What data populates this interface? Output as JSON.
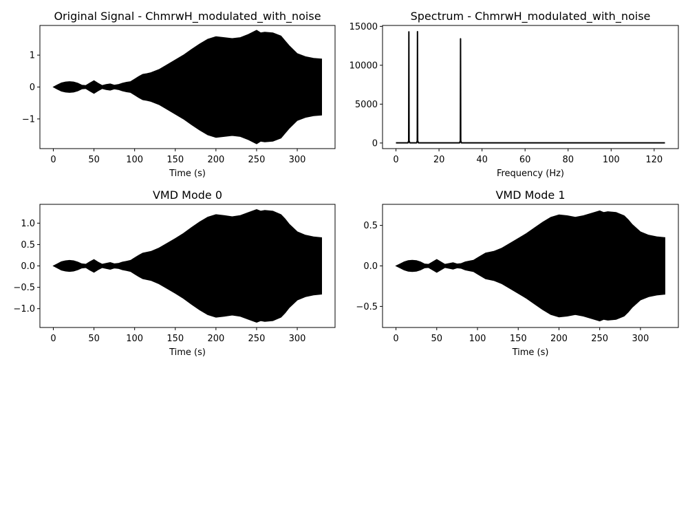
{
  "chart_data": [
    {
      "type": "line",
      "kind": "envelope",
      "title": "Original Signal - ChmrwH_modulated_with_noise",
      "xlabel": "Time (s)",
      "ylabel": "",
      "xlim": [
        -16.5,
        346.5
      ],
      "ylim": [
        -1.93,
        1.93
      ],
      "xticks": [
        0,
        50,
        100,
        150,
        200,
        250,
        300
      ],
      "yticks": [
        -1,
        0,
        1
      ],
      "ytick_labels": [
        "−1",
        "0",
        "1"
      ],
      "series": [
        {
          "color": "#000000",
          "x": [
            0,
            5,
            10,
            15,
            20,
            25,
            30,
            35,
            40,
            45,
            50,
            55,
            60,
            65,
            70,
            75,
            80,
            85,
            90,
            95,
            100,
            105,
            110,
            115,
            120,
            130,
            140,
            150,
            160,
            170,
            180,
            190,
            200,
            210,
            220,
            230,
            240,
            250,
            255,
            260,
            270,
            280,
            285,
            290,
            300,
            310,
            320,
            330
          ],
          "upper": [
            0,
            0.07,
            0.13,
            0.16,
            0.17,
            0.16,
            0.12,
            0.06,
            0.05,
            0.13,
            0.2,
            0.12,
            0.05,
            0.08,
            0.1,
            0.06,
            0.08,
            0.12,
            0.15,
            0.17,
            0.25,
            0.33,
            0.4,
            0.42,
            0.45,
            0.55,
            0.7,
            0.85,
            1.0,
            1.18,
            1.35,
            1.5,
            1.58,
            1.55,
            1.52,
            1.55,
            1.65,
            1.78,
            1.7,
            1.72,
            1.7,
            1.6,
            1.45,
            1.3,
            1.05,
            0.95,
            0.9,
            0.88
          ],
          "lower": [
            0,
            -0.07,
            -0.13,
            -0.16,
            -0.17,
            -0.16,
            -0.12,
            -0.06,
            -0.05,
            -0.13,
            -0.2,
            -0.12,
            -0.05,
            -0.08,
            -0.1,
            -0.06,
            -0.08,
            -0.12,
            -0.15,
            -0.17,
            -0.25,
            -0.33,
            -0.4,
            -0.42,
            -0.45,
            -0.55,
            -0.7,
            -0.85,
            -1.0,
            -1.18,
            -1.35,
            -1.5,
            -1.58,
            -1.55,
            -1.52,
            -1.55,
            -1.65,
            -1.78,
            -1.7,
            -1.72,
            -1.7,
            -1.6,
            -1.45,
            -1.3,
            -1.05,
            -0.95,
            -0.9,
            -0.88
          ]
        }
      ]
    },
    {
      "type": "line",
      "title": "Spectrum - ChmrwH_modulated_with_noise",
      "xlabel": "Frequency (Hz)",
      "ylabel": "",
      "xlim": [
        -6.25,
        131.25
      ],
      "ylim": [
        -720,
        15120
      ],
      "xticks": [
        0,
        20,
        40,
        60,
        80,
        100,
        120
      ],
      "yticks": [
        0,
        5000,
        10000,
        15000
      ],
      "series": [
        {
          "color": "#000000",
          "x": [
            0,
            5.6,
            5.9,
            6.0,
            6.1,
            6.4,
            9.6,
            9.9,
            10.0,
            10.1,
            10.4,
            29.6,
            29.9,
            30.0,
            30.1,
            30.4,
            125
          ],
          "y": [
            20,
            20,
            300,
            14300,
            300,
            20,
            20,
            300,
            14320,
            300,
            20,
            20,
            300,
            13400,
            300,
            20,
            20
          ]
        }
      ]
    },
    {
      "type": "line",
      "kind": "envelope",
      "title": "VMD Mode 0",
      "xlabel": "Time (s)",
      "ylabel": "",
      "xlim": [
        -16.5,
        346.5
      ],
      "ylim": [
        -1.44,
        1.44
      ],
      "xticks": [
        0,
        50,
        100,
        150,
        200,
        250,
        300
      ],
      "yticks": [
        -1.0,
        -0.5,
        0.0,
        0.5,
        1.0
      ],
      "ytick_labels": [
        "−1.0",
        "−0.5",
        "0.0",
        "0.5",
        "1.0"
      ],
      "series": [
        {
          "color": "#000000",
          "x": [
            0,
            5,
            10,
            15,
            20,
            25,
            30,
            35,
            40,
            45,
            50,
            55,
            60,
            65,
            70,
            75,
            80,
            85,
            90,
            95,
            100,
            105,
            110,
            115,
            120,
            130,
            140,
            150,
            160,
            170,
            180,
            190,
            200,
            210,
            220,
            230,
            240,
            250,
            255,
            260,
            270,
            280,
            285,
            290,
            300,
            310,
            320,
            330
          ],
          "upper": [
            0,
            0.05,
            0.1,
            0.12,
            0.13,
            0.12,
            0.09,
            0.05,
            0.04,
            0.1,
            0.15,
            0.09,
            0.04,
            0.06,
            0.08,
            0.05,
            0.06,
            0.09,
            0.11,
            0.13,
            0.19,
            0.25,
            0.3,
            0.32,
            0.34,
            0.42,
            0.53,
            0.64,
            0.76,
            0.9,
            1.03,
            1.14,
            1.2,
            1.18,
            1.15,
            1.18,
            1.25,
            1.32,
            1.28,
            1.3,
            1.28,
            1.2,
            1.1,
            0.98,
            0.8,
            0.72,
            0.68,
            0.66
          ],
          "lower": [
            0,
            -0.05,
            -0.1,
            -0.12,
            -0.13,
            -0.12,
            -0.09,
            -0.05,
            -0.04,
            -0.1,
            -0.15,
            -0.09,
            -0.04,
            -0.06,
            -0.08,
            -0.05,
            -0.06,
            -0.09,
            -0.11,
            -0.13,
            -0.19,
            -0.25,
            -0.3,
            -0.32,
            -0.34,
            -0.42,
            -0.53,
            -0.64,
            -0.76,
            -0.9,
            -1.03,
            -1.14,
            -1.2,
            -1.18,
            -1.15,
            -1.18,
            -1.25,
            -1.32,
            -1.28,
            -1.3,
            -1.28,
            -1.2,
            -1.1,
            -0.98,
            -0.8,
            -0.72,
            -0.68,
            -0.66
          ]
        }
      ]
    },
    {
      "type": "line",
      "kind": "envelope",
      "title": "VMD Mode 1",
      "xlabel": "Time (s)",
      "ylabel": "",
      "xlim": [
        -16.5,
        346.5
      ],
      "ylim": [
        -0.76,
        0.76
      ],
      "xticks": [
        0,
        50,
        100,
        150,
        200,
        250,
        300
      ],
      "yticks": [
        -0.5,
        0.0,
        0.5
      ],
      "ytick_labels": [
        "−0.5",
        "0.0",
        "0.5"
      ],
      "series": [
        {
          "color": "#000000",
          "x": [
            0,
            5,
            10,
            15,
            20,
            25,
            30,
            35,
            40,
            45,
            50,
            55,
            60,
            65,
            70,
            75,
            80,
            85,
            90,
            95,
            100,
            105,
            110,
            115,
            120,
            130,
            140,
            150,
            160,
            170,
            180,
            190,
            200,
            210,
            220,
            230,
            240,
            250,
            255,
            260,
            270,
            280,
            285,
            290,
            300,
            310,
            320,
            330
          ],
          "upper": [
            0,
            0.025,
            0.05,
            0.065,
            0.07,
            0.065,
            0.05,
            0.025,
            0.02,
            0.05,
            0.08,
            0.05,
            0.02,
            0.03,
            0.04,
            0.025,
            0.03,
            0.05,
            0.06,
            0.07,
            0.1,
            0.13,
            0.16,
            0.17,
            0.18,
            0.22,
            0.28,
            0.34,
            0.4,
            0.47,
            0.54,
            0.6,
            0.63,
            0.62,
            0.6,
            0.62,
            0.65,
            0.68,
            0.66,
            0.67,
            0.66,
            0.62,
            0.57,
            0.51,
            0.42,
            0.38,
            0.36,
            0.35
          ],
          "lower": [
            0,
            -0.025,
            -0.05,
            -0.065,
            -0.07,
            -0.065,
            -0.05,
            -0.025,
            -0.02,
            -0.05,
            -0.08,
            -0.05,
            -0.02,
            -0.03,
            -0.04,
            -0.025,
            -0.03,
            -0.05,
            -0.06,
            -0.07,
            -0.1,
            -0.13,
            -0.16,
            -0.17,
            -0.18,
            -0.22,
            -0.28,
            -0.34,
            -0.4,
            -0.47,
            -0.54,
            -0.6,
            -0.63,
            -0.62,
            -0.6,
            -0.62,
            -0.65,
            -0.68,
            -0.66,
            -0.67,
            -0.66,
            -0.62,
            -0.57,
            -0.51,
            -0.42,
            -0.38,
            -0.36,
            -0.35
          ]
        }
      ]
    }
  ]
}
